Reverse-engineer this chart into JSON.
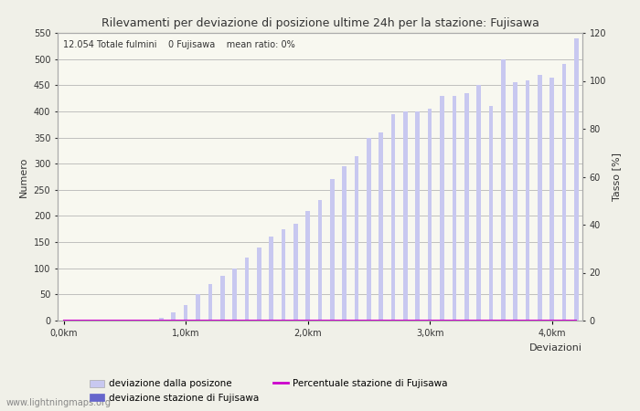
{
  "title": "Rilevamenti per deviazione di posizione ultime 24h per la stazione: Fujisawa",
  "subtitle": "12.054 Totale fulmini    0 Fujisawa    mean ratio: 0%",
  "ylabel_left": "Numero",
  "ylabel_right": "Tasso [%]",
  "xlabel": "Deviazioni",
  "ylim_left": [
    0,
    550
  ],
  "ylim_right": [
    0,
    120
  ],
  "yticks_left": [
    0,
    50,
    100,
    150,
    200,
    250,
    300,
    350,
    400,
    450,
    500,
    550
  ],
  "yticks_right": [
    0,
    20,
    40,
    60,
    80,
    100,
    120
  ],
  "xtick_labels": [
    "0,0km",
    "1,0km",
    "2,0km",
    "3,0km",
    "4,0km"
  ],
  "xtick_positions": [
    0,
    10,
    20,
    30,
    40
  ],
  "bar_values_total": [
    0,
    0,
    0,
    0,
    0,
    0,
    0,
    0,
    5,
    15,
    30,
    50,
    70,
    85,
    100,
    120,
    140,
    160,
    175,
    185,
    210,
    230,
    270,
    295,
    315,
    350,
    360,
    395,
    400,
    400,
    405,
    430,
    430,
    435,
    450,
    410,
    500,
    455,
    460,
    470,
    465,
    490,
    540
  ],
  "bar_values_station": [
    0,
    0,
    0,
    0,
    0,
    0,
    0,
    0,
    0,
    0,
    0,
    0,
    0,
    0,
    0,
    0,
    0,
    0,
    0,
    0,
    0,
    0,
    0,
    0,
    0,
    0,
    0,
    0,
    0,
    0,
    0,
    0,
    0,
    0,
    0,
    0,
    0,
    0,
    0,
    0,
    0,
    0,
    0
  ],
  "percentage_values": [
    0,
    0,
    0,
    0,
    0,
    0,
    0,
    0,
    0,
    0,
    0,
    0,
    0,
    0,
    0,
    0,
    0,
    0,
    0,
    0,
    0,
    0,
    0,
    0,
    0,
    0,
    0,
    0,
    0,
    0,
    0,
    0,
    0,
    0,
    0,
    0,
    0,
    0,
    0,
    0,
    0,
    0,
    0
  ],
  "color_total": "#c8c8f0",
  "color_station": "#6666cc",
  "color_percentage": "#cc00cc",
  "color_background": "#f0f0e8",
  "color_plot_bg": "#f8f8f0",
  "color_grid": "#aaaaaa",
  "color_text": "#333333",
  "color_border": "#aaaaaa",
  "watermark": "www.lightningmaps.org",
  "legend_label_total": "deviazione dalla posizone",
  "legend_label_station": "deviazione stazione di Fujisawa",
  "legend_label_percentage": "Percentuale stazione di Fujisawa",
  "num_bars": 43,
  "bar_width": 0.35,
  "figsize": [
    7.0,
    4.5
  ],
  "dpi": 100
}
